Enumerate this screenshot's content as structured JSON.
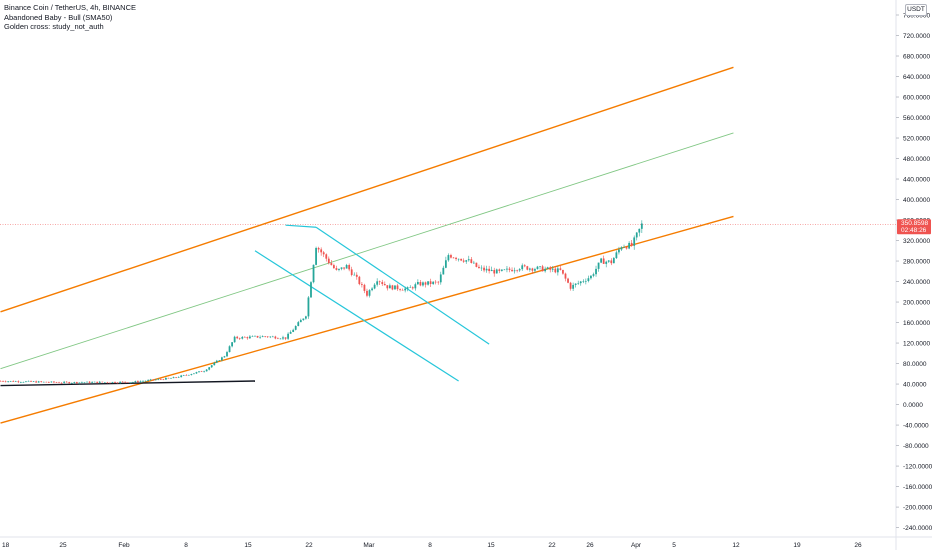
{
  "legend": {
    "symbol": "Binance Coin / TetherUS, 4h, BINANCE",
    "study1": "Abandoned Baby - Bull (SMA50)",
    "study2": "Golden cross: study_not_auth"
  },
  "currency": "USDT",
  "price_tag": {
    "value": "350.8598",
    "countdown": "02:48:26"
  },
  "colors": {
    "up": "#26a69a",
    "down": "#ef5350",
    "channel": "#f57c00",
    "mid_line": "#81c784",
    "down_channel": "#26c6da",
    "trend_line": "#131722"
  },
  "chart_data": {
    "type": "candlestick",
    "x_tick_labels": [
      "18",
      "25",
      "Feb",
      "8",
      "15",
      "22",
      "Mar",
      "8",
      "15",
      "22",
      "26",
      "Apr",
      "5",
      "12",
      "19",
      "26"
    ],
    "y_tick_labels": [
      "760.0000",
      "720.0000",
      "680.0000",
      "640.0000",
      "600.0000",
      "560.0000",
      "520.0000",
      "480.0000",
      "440.0000",
      "400.0000",
      "360.0000",
      "320.0000",
      "280.0000",
      "240.0000",
      "200.0000",
      "160.0000",
      "120.0000",
      "80.0000",
      "40.0000",
      "0.0000",
      "-40.0000",
      "-80.0000",
      "-120.0000",
      "-160.0000",
      "-200.0000",
      "-240.0000"
    ],
    "ylim": [
      -260,
      775
    ],
    "last_price": 350.8598,
    "price_path": [
      {
        "t": 0,
        "v": 46
      },
      {
        "t": 6,
        "v": 43
      },
      {
        "t": 13,
        "v": 44
      },
      {
        "t": 17,
        "v": 52
      },
      {
        "t": 20,
        "v": 66
      },
      {
        "t": 22,
        "v": 95
      },
      {
        "t": 23,
        "v": 130
      },
      {
        "t": 26,
        "v": 133
      },
      {
        "t": 28,
        "v": 130
      },
      {
        "t": 30,
        "v": 175
      },
      {
        "t": 31,
        "v": 310
      },
      {
        "t": 32,
        "v": 285
      },
      {
        "t": 33,
        "v": 260
      },
      {
        "t": 34,
        "v": 270
      },
      {
        "t": 35,
        "v": 245
      },
      {
        "t": 36,
        "v": 215
      },
      {
        "t": 37,
        "v": 245
      },
      {
        "t": 38,
        "v": 230
      },
      {
        "t": 40,
        "v": 225
      },
      {
        "t": 41,
        "v": 235
      },
      {
        "t": 43,
        "v": 238
      },
      {
        "t": 44,
        "v": 292
      },
      {
        "t": 46,
        "v": 280
      },
      {
        "t": 47,
        "v": 265
      },
      {
        "t": 49,
        "v": 258
      },
      {
        "t": 51,
        "v": 268
      },
      {
        "t": 53,
        "v": 265
      },
      {
        "t": 55,
        "v": 261
      },
      {
        "t": 56,
        "v": 229
      },
      {
        "t": 58,
        "v": 250
      },
      {
        "t": 59,
        "v": 280
      },
      {
        "t": 60,
        "v": 278
      },
      {
        "t": 61,
        "v": 310
      },
      {
        "t": 62,
        "v": 310
      },
      {
        "t": 63,
        "v": 350.86
      }
    ],
    "drawings": [
      {
        "name": "channel-upper",
        "points": [
          [
            0,
            181
          ],
          [
            72,
            658
          ]
        ]
      },
      {
        "name": "channel-lower",
        "points": [
          [
            0,
            -36
          ],
          [
            72,
            367
          ]
        ]
      },
      {
        "name": "channel-mid",
        "points": [
          [
            0,
            70
          ],
          [
            72,
            530
          ]
        ]
      },
      {
        "name": "down-channel-upper",
        "points": [
          [
            31,
            346
          ],
          [
            48,
            118
          ]
        ]
      },
      {
        "name": "down-channel-lower",
        "points": [
          [
            25,
            300
          ],
          [
            45,
            46
          ]
        ]
      },
      {
        "name": "support-line",
        "points": [
          [
            0,
            37
          ],
          [
            25,
            46
          ]
        ]
      }
    ]
  }
}
